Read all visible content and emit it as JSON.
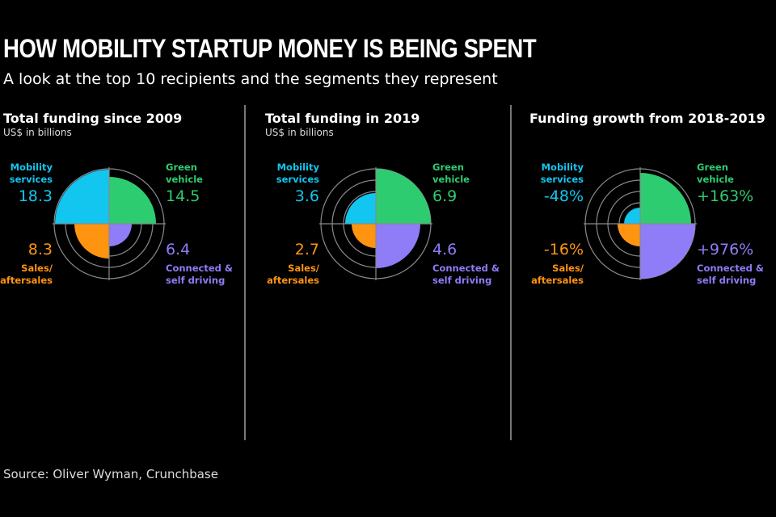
{
  "title": "HOW MOBILITY STARTUP MONEY IS BEING SPENT",
  "subtitle": "A look at the top 10 recipients and the segments they represent",
  "source": "Source: Oliver Wyman, Crunchbase",
  "colors": {
    "mobility": "#12c6f0",
    "green": "#2ecc71",
    "sales": "#ff9410",
    "connected": "#8f7cf7",
    "grid": "#8a8a8a"
  },
  "chart_data": [
    {
      "type": "polar-area",
      "title": "Total funding since 2009",
      "unit": "US$ in billions",
      "segments": [
        {
          "name": "Mobility services",
          "label": "18.3",
          "value": 18.3,
          "color": "#12c6f0"
        },
        {
          "name": "Green vehicle",
          "label": "14.5",
          "value": 14.5,
          "color": "#2ecc71"
        },
        {
          "name": "Connected & self driving",
          "label": "6.4",
          "value": 6.4,
          "color": "#8f7cf7"
        },
        {
          "name": "Sales/ aftersales",
          "label": "8.3",
          "value": 8.3,
          "color": "#ff9410"
        }
      ]
    },
    {
      "type": "polar-area",
      "title": "Total funding in 2019",
      "unit": "US$ in billions",
      "segments": [
        {
          "name": "Mobility services",
          "label": "3.6",
          "value": 3.6,
          "color": "#12c6f0"
        },
        {
          "name": "Green vehicle",
          "label": "6.9",
          "value": 6.9,
          "color": "#2ecc71"
        },
        {
          "name": "Connected & self driving",
          "label": "4.6",
          "value": 4.6,
          "color": "#8f7cf7"
        },
        {
          "name": "Sales/ aftersales",
          "label": "2.7",
          "value": 2.7,
          "color": "#ff9410"
        }
      ]
    },
    {
      "type": "polar-area",
      "title": "Funding growth from 2018-2019",
      "unit": "",
      "segments": [
        {
          "name": "Mobility services",
          "label": "-48%",
          "value": -48,
          "color": "#12c6f0"
        },
        {
          "name": "Green vehicle",
          "label": "+163%",
          "value": 163,
          "color": "#2ecc71"
        },
        {
          "name": "Connected & self driving",
          "label": "+976%",
          "value": 976,
          "color": "#8f7cf7"
        },
        {
          "name": "Sales/ aftersales",
          "label": "-16%",
          "value": -16,
          "color": "#ff9410"
        }
      ]
    }
  ]
}
